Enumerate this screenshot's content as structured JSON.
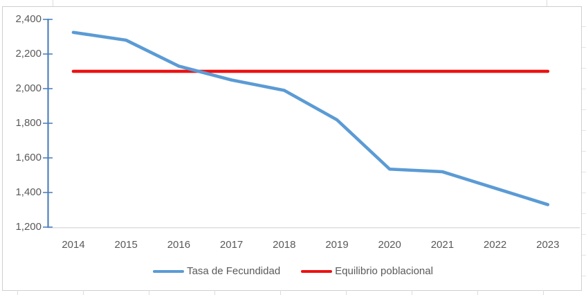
{
  "chart_data": {
    "type": "line",
    "title": "",
    "xlabel": "",
    "ylabel": "",
    "categories": [
      "2014",
      "2015",
      "2016",
      "2017",
      "2018",
      "2019",
      "2020",
      "2021",
      "2022",
      "2023"
    ],
    "series": [
      {
        "name": "Tasa de Fecundidad",
        "color": "#5b9bd5",
        "values": [
          2325,
          2280,
          2130,
          2050,
          1990,
          1820,
          1535,
          1520,
          1425,
          1330
        ]
      },
      {
        "name": "Equilibrio poblacional",
        "color": "#ed1111",
        "values": [
          2100,
          2100,
          2100,
          2100,
          2100,
          2100,
          2100,
          2100,
          2100,
          2100
        ]
      }
    ],
    "ylim": [
      1200,
      2400
    ],
    "ytick_step": 200,
    "ytick_labels": [
      "2,400",
      "2,200",
      "2,000",
      "1,800",
      "1,600",
      "1,400",
      "1,200"
    ],
    "grid": false,
    "legend_position": "bottom"
  },
  "style": {
    "y_axis_color": "#4f81bd",
    "x_axis_line_color": "#d9d9d9",
    "label_color": "#595959",
    "border_color": "#d0cece"
  }
}
